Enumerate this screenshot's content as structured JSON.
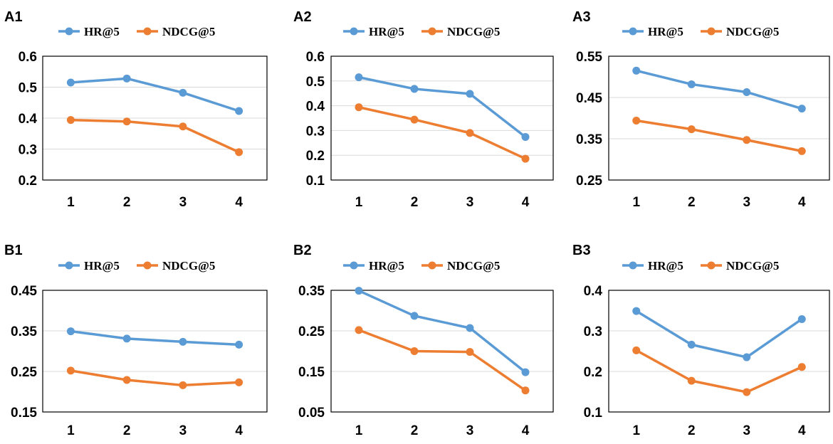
{
  "colors": {
    "hr": "#5b9bd5",
    "ndcg": "#ed7d31",
    "grid": "#d9d9d9",
    "frame": "#000000"
  },
  "chart_data": [
    {
      "id": "A1",
      "label": "A1",
      "type": "line",
      "categories": [
        "1",
        "2",
        "3",
        "4"
      ],
      "ylim": [
        0.2,
        0.6
      ],
      "yticks": [
        "0.2",
        "0.3",
        "0.4",
        "0.5",
        "0.6"
      ],
      "series": [
        {
          "name": "HR@5",
          "values": [
            0.515,
            0.528,
            0.482,
            0.423
          ]
        },
        {
          "name": "NDCG@5",
          "values": [
            0.394,
            0.389,
            0.373,
            0.29
          ]
        }
      ]
    },
    {
      "id": "A2",
      "label": "A2",
      "type": "line",
      "categories": [
        "1",
        "2",
        "3",
        "4"
      ],
      "ylim": [
        0.1,
        0.6
      ],
      "yticks": [
        "0.1",
        "0.2",
        "0.3",
        "0.4",
        "0.5",
        "0.6"
      ],
      "series": [
        {
          "name": "HR@5",
          "values": [
            0.515,
            0.468,
            0.448,
            0.274
          ]
        },
        {
          "name": "NDCG@5",
          "values": [
            0.394,
            0.344,
            0.29,
            0.186
          ]
        }
      ]
    },
    {
      "id": "A3",
      "label": "A3",
      "type": "line",
      "categories": [
        "1",
        "2",
        "3",
        "4"
      ],
      "ylim": [
        0.25,
        0.55
      ],
      "yticks": [
        "0.25",
        "0.35",
        "0.45",
        "0.55"
      ],
      "series": [
        {
          "name": "HR@5",
          "values": [
            0.515,
            0.482,
            0.463,
            0.423
          ]
        },
        {
          "name": "NDCG@5",
          "values": [
            0.394,
            0.373,
            0.347,
            0.32
          ]
        }
      ]
    },
    {
      "id": "B1",
      "label": "B1",
      "type": "line",
      "categories": [
        "1",
        "2",
        "3",
        "4"
      ],
      "ylim": [
        0.15,
        0.45
      ],
      "yticks": [
        "0.15",
        "0.25",
        "0.35",
        "0.45"
      ],
      "series": [
        {
          "name": "HR@5",
          "values": [
            0.349,
            0.331,
            0.323,
            0.316
          ]
        },
        {
          "name": "NDCG@5",
          "values": [
            0.252,
            0.229,
            0.216,
            0.223
          ]
        }
      ]
    },
    {
      "id": "B2",
      "label": "B2",
      "type": "line",
      "categories": [
        "1",
        "2",
        "3",
        "4"
      ],
      "ylim": [
        0.05,
        0.35
      ],
      "yticks": [
        "0.05",
        "0.15",
        "0.25",
        "0.35"
      ],
      "series": [
        {
          "name": "HR@5",
          "values": [
            0.349,
            0.287,
            0.257,
            0.148
          ]
        },
        {
          "name": "NDCG@5",
          "values": [
            0.252,
            0.2,
            0.198,
            0.103
          ]
        }
      ]
    },
    {
      "id": "B3",
      "label": "B3",
      "type": "line",
      "categories": [
        "1",
        "2",
        "3",
        "4"
      ],
      "ylim": [
        0.1,
        0.4
      ],
      "yticks": [
        "0.1",
        "0.2",
        "0.3",
        "0.4"
      ],
      "series": [
        {
          "name": "HR@5",
          "values": [
            0.349,
            0.266,
            0.235,
            0.329
          ]
        },
        {
          "name": "NDCG@5",
          "values": [
            0.252,
            0.177,
            0.149,
            0.211
          ]
        }
      ]
    }
  ]
}
